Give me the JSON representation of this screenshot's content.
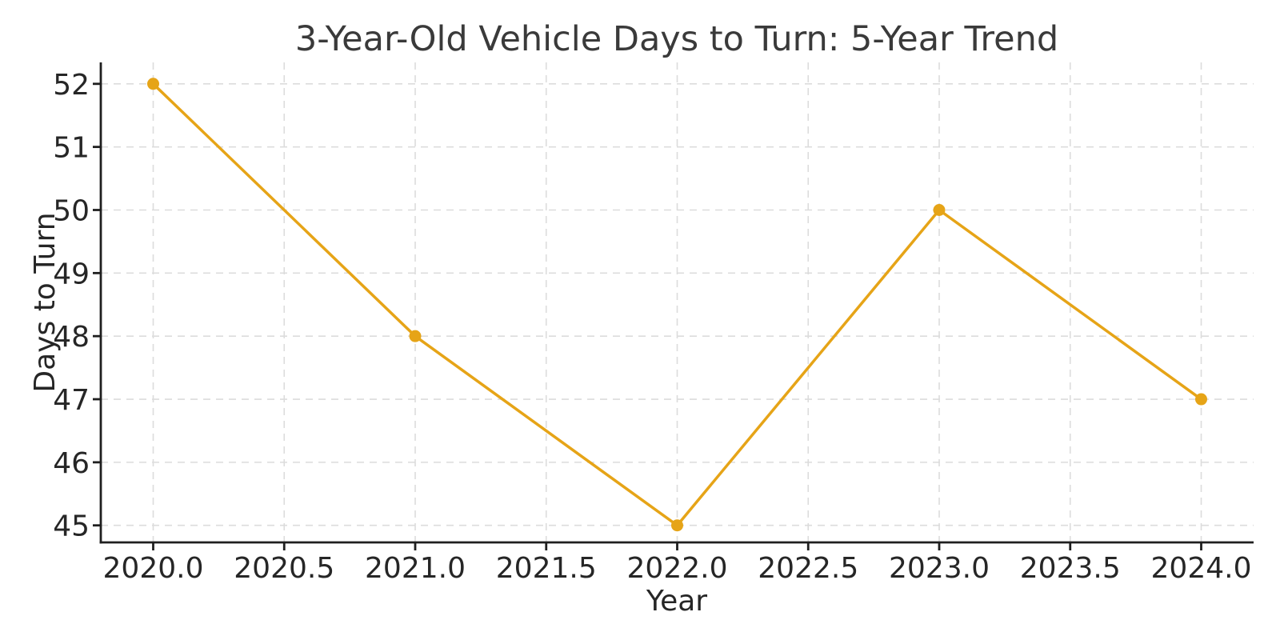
{
  "chart_data": {
    "type": "line",
    "title": "3-Year-Old Vehicle Days to Turn: 5-Year Trend",
    "xlabel": "Year",
    "ylabel": "Days to Turn",
    "x": [
      2020,
      2021,
      2022,
      2023,
      2024
    ],
    "values": [
      52,
      48,
      45,
      50,
      47
    ],
    "series_name": "Days to Turn",
    "x_tick_values": [
      2020.0,
      2020.5,
      2021.0,
      2021.5,
      2022.0,
      2022.5,
      2023.0,
      2023.5,
      2024.0
    ],
    "x_tick_labels": [
      "2020.0",
      "2020.5",
      "2021.0",
      "2021.5",
      "2022.0",
      "2022.5",
      "2023.0",
      "2023.5",
      "2024.0"
    ],
    "y_tick_values": [
      45,
      46,
      47,
      48,
      49,
      50,
      51,
      52
    ],
    "y_tick_labels": [
      "45",
      "46",
      "47",
      "48",
      "49",
      "50",
      "51",
      "52"
    ],
    "xlim": [
      2019.8,
      2024.2
    ],
    "ylim": [
      44.73,
      52.34
    ],
    "grid": true,
    "grid_style": "dashed",
    "legend": "none",
    "spines": [
      "left",
      "bottom"
    ],
    "colors": {
      "line": "#E6A417",
      "marker": "#E6A417",
      "grid": "#DCDCDC",
      "axis": "#1F1F1F",
      "tick_text": "#262626",
      "title_text": "#3A3A3A"
    },
    "line_width": 3.5,
    "marker": "circle",
    "marker_radius": 7.5
  }
}
